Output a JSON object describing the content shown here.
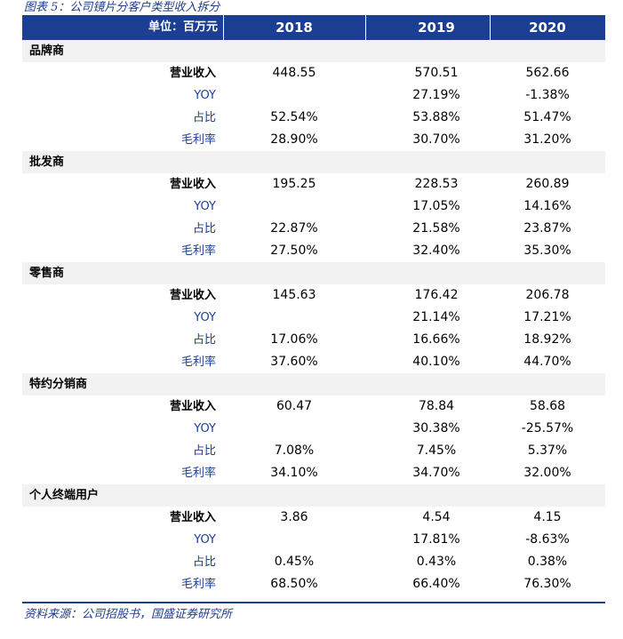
{
  "caption": "图表 5：公司镜片分客户类型收入拆分",
  "header": {
    "unit_label": "单位：百万元",
    "years": [
      "2018",
      "2019",
      "2020"
    ]
  },
  "groups": [
    {
      "name": "品牌商",
      "rows": [
        {
          "label": "营业收入",
          "style": "dark",
          "values": [
            "448.55",
            "570.51",
            "562.66"
          ]
        },
        {
          "label": "YOY",
          "style": "blue",
          "values": [
            "",
            "27.19%",
            "-1.38%"
          ]
        },
        {
          "label": "占比",
          "style": "blue",
          "values": [
            "52.54%",
            "53.88%",
            "51.47%"
          ]
        },
        {
          "label": "毛利率",
          "style": "blue",
          "values": [
            "28.90%",
            "30.70%",
            "31.20%"
          ]
        }
      ]
    },
    {
      "name": "批发商",
      "rows": [
        {
          "label": "营业收入",
          "style": "dark",
          "values": [
            "195.25",
            "228.53",
            "260.89"
          ]
        },
        {
          "label": "YOY",
          "style": "blue",
          "values": [
            "",
            "17.05%",
            "14.16%"
          ]
        },
        {
          "label": "占比",
          "style": "blue",
          "values": [
            "22.87%",
            "21.58%",
            "23.87%"
          ]
        },
        {
          "label": "毛利率",
          "style": "blue",
          "values": [
            "27.50%",
            "32.40%",
            "35.30%"
          ]
        }
      ]
    },
    {
      "name": "零售商",
      "rows": [
        {
          "label": "营业收入",
          "style": "dark",
          "values": [
            "145.63",
            "176.42",
            "206.78"
          ]
        },
        {
          "label": "YOY",
          "style": "blue",
          "values": [
            "",
            "21.14%",
            "17.21%"
          ]
        },
        {
          "label": "占比",
          "style": "blue",
          "values": [
            "17.06%",
            "16.66%",
            "18.92%"
          ]
        },
        {
          "label": "毛利率",
          "style": "blue",
          "values": [
            "37.60%",
            "40.10%",
            "44.70%"
          ]
        }
      ]
    },
    {
      "name": "特约分销商",
      "rows": [
        {
          "label": "营业收入",
          "style": "dark",
          "values": [
            "60.47",
            "78.84",
            "58.68"
          ]
        },
        {
          "label": "YOY",
          "style": "blue",
          "values": [
            "",
            "30.38%",
            "-25.57%"
          ]
        },
        {
          "label": "占比",
          "style": "blue",
          "values": [
            "7.08%",
            "7.45%",
            "5.37%"
          ]
        },
        {
          "label": "毛利率",
          "style": "blue",
          "values": [
            "34.10%",
            "34.70%",
            "32.00%"
          ]
        }
      ]
    },
    {
      "name": "个人终端用户",
      "rows": [
        {
          "label": "营业收入",
          "style": "dark",
          "values": [
            "3.86",
            "4.54",
            "4.15"
          ]
        },
        {
          "label": "YOY",
          "style": "blue",
          "values": [
            "",
            "17.81%",
            "-8.63%"
          ]
        },
        {
          "label": "占比",
          "style": "blue",
          "values": [
            "0.45%",
            "0.43%",
            "0.38%"
          ]
        },
        {
          "label": "毛利率",
          "style": "blue",
          "values": [
            "68.50%",
            "66.40%",
            "76.30%"
          ]
        }
      ]
    }
  ],
  "source": "资料来源：公司招股书，国盛证券研究所",
  "colors": {
    "header_bg": "#1c3f94",
    "group_bg": "#f2f2f2",
    "label_blue": "#1c3f94"
  }
}
